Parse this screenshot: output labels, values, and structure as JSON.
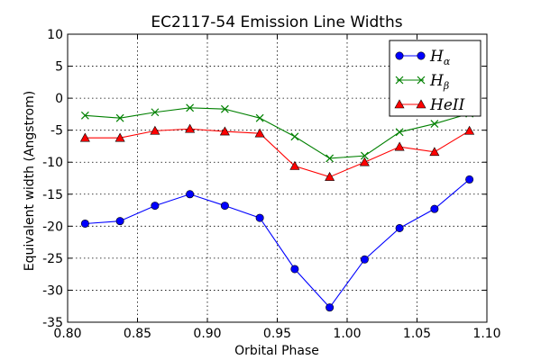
{
  "chart_data": {
    "type": "line",
    "title": "EC2117-54 Emission Line Widths",
    "xlabel": "Orbital Phase",
    "ylabel": "Equivalent width (Angstrom)",
    "xlim": [
      0.8,
      1.1
    ],
    "ylim": [
      -35,
      10
    ],
    "xticks": [
      "0.80",
      "0.85",
      "0.90",
      "0.95",
      "1.00",
      "1.05",
      "1.10"
    ],
    "yticks": [
      "10",
      "5",
      "0",
      "-5",
      "-10",
      "-15",
      "-20",
      "-25",
      "-30",
      "-35"
    ],
    "grid": true,
    "legend_position": "top-right",
    "x": [
      0.8125,
      0.8375,
      0.8625,
      0.8875,
      0.9125,
      0.9375,
      0.9625,
      0.9875,
      1.0125,
      1.0375,
      1.0625,
      1.0875
    ],
    "series": [
      {
        "name": "H",
        "name_sub": "α",
        "color": "#0000ff",
        "marker": "circle",
        "values": [
          -19.6,
          -19.2,
          -16.8,
          -15.0,
          -16.8,
          -18.7,
          -26.7,
          -32.7,
          -25.2,
          -20.3,
          -17.3,
          -12.7
        ]
      },
      {
        "name": "H",
        "name_sub": "β",
        "color": "#008000",
        "marker": "x",
        "values": [
          -2.7,
          -3.1,
          -2.2,
          -1.5,
          -1.7,
          -3.1,
          -6.0,
          -9.4,
          -9.0,
          -5.3,
          -4.0,
          -2.4
        ]
      },
      {
        "name": "HeII",
        "name_sub": "",
        "color": "#ff0000",
        "marker": "triangle",
        "values": [
          -6.2,
          -6.2,
          -5.1,
          -4.8,
          -5.2,
          -5.5,
          -10.6,
          -12.3,
          -10.0,
          -7.6,
          -8.4,
          -5.1
        ]
      }
    ]
  }
}
